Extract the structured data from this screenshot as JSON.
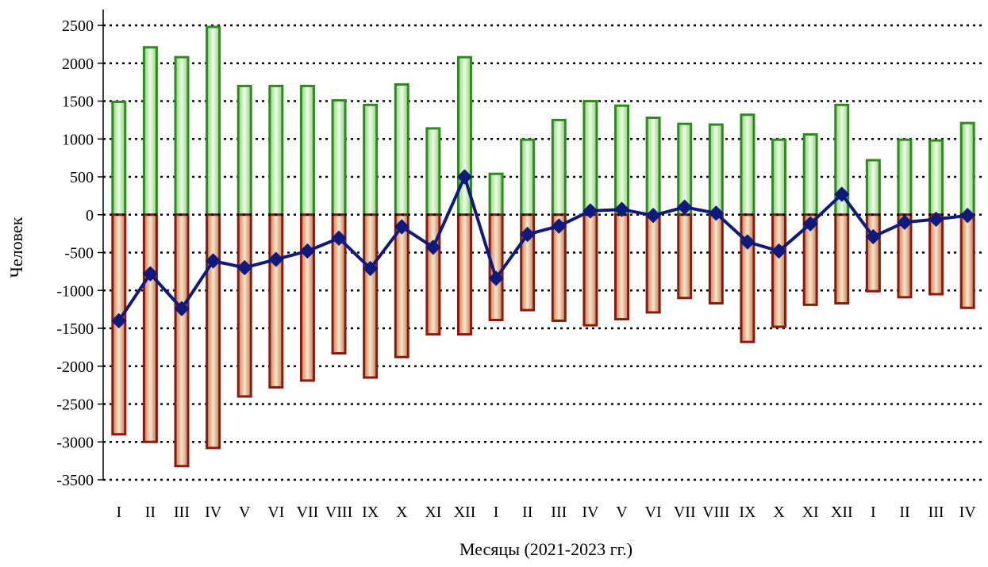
{
  "chart_data": {
    "type": "bar",
    "title": "",
    "xlabel": "Месяцы (2021-2023 гг.)",
    "ylabel": "Человек",
    "ylim": [
      -3500,
      2500
    ],
    "yticks": [
      2500,
      2000,
      1500,
      1000,
      500,
      0,
      -500,
      -1000,
      -1500,
      -2000,
      -2500,
      -3000,
      -3500
    ],
    "grid": "horizontal dotted",
    "legend": "none",
    "categories": [
      "I",
      "II",
      "III",
      "IV",
      "V",
      "VI",
      "VII",
      "VIII",
      "IX",
      "X",
      "XI",
      "XII",
      "I",
      "II",
      "III",
      "IV",
      "V",
      "VI",
      "VII",
      "VIII",
      "IX",
      "X",
      "XI",
      "XII",
      "I",
      "II",
      "III",
      "IV"
    ],
    "series": [
      {
        "kind": "bar",
        "color": "#2e8b1e",
        "values": [
          1490,
          2210,
          2080,
          2480,
          1700,
          1700,
          1700,
          1510,
          1450,
          1720,
          1140,
          2080,
          540,
          990,
          1250,
          1500,
          1440,
          1280,
          1200,
          1190,
          1320,
          990,
          1060,
          1450,
          720,
          990,
          980,
          1210
        ]
      },
      {
        "kind": "bar",
        "color": "#8b1a0e",
        "values": [
          -2900,
          -3000,
          -3320,
          -3080,
          -2400,
          -2280,
          -2190,
          -1830,
          -2150,
          -1880,
          -1580,
          -1580,
          -1390,
          -1260,
          -1400,
          -1460,
          -1380,
          -1290,
          -1100,
          -1170,
          -1680,
          -1480,
          -1190,
          -1170,
          -1010,
          -1090,
          -1050,
          -1230
        ]
      },
      {
        "kind": "line",
        "color": "#101a7c",
        "values": [
          -1400,
          -780,
          -1240,
          -610,
          -700,
          -590,
          -480,
          -310,
          -710,
          -160,
          -430,
          500,
          -840,
          -260,
          -150,
          50,
          70,
          -10,
          100,
          20,
          -360,
          -480,
          -120,
          270,
          -290,
          -100,
          -60,
          -10
        ]
      }
    ]
  }
}
